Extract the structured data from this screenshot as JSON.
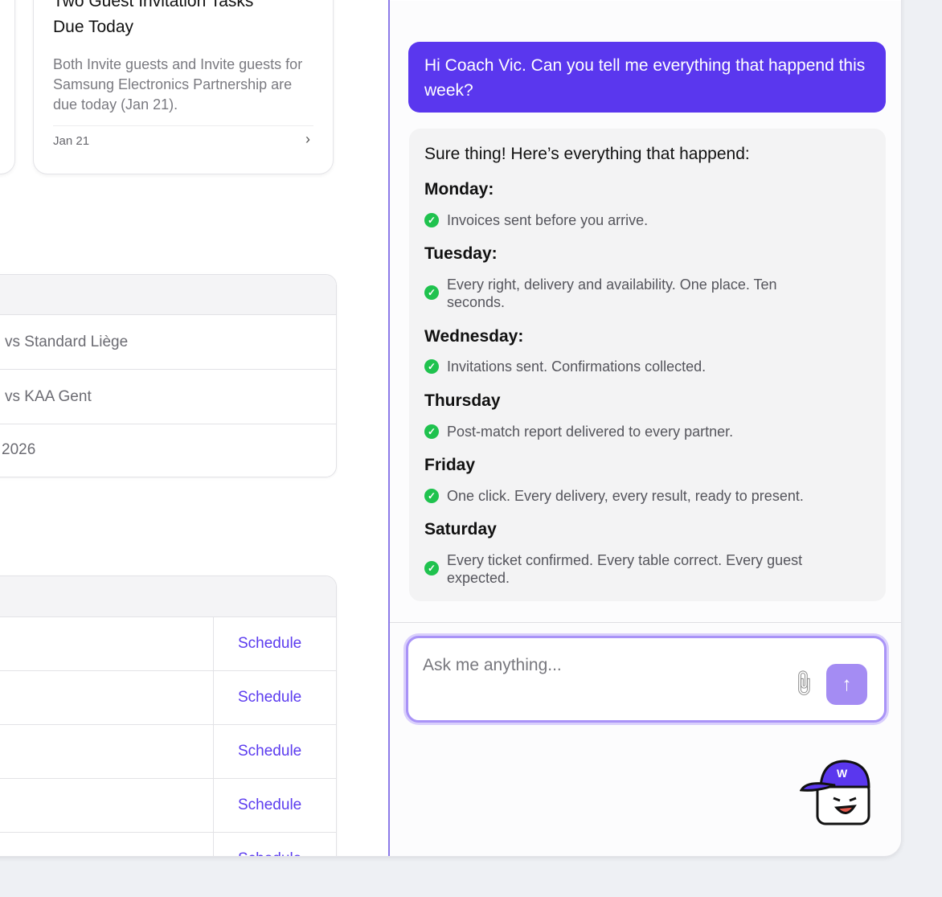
{
  "task_card": {
    "title_line1": "Two Guest Invitation Tasks",
    "title_line2": "Due Today",
    "description": "Both Invite guests and Invite guests for Samsung Electronics Partnership are due today (Jan 21).",
    "date": "Jan 21",
    "chevron": "chevron-right-icon"
  },
  "matches_table": {
    "rows": [
      "vs Standard Liège",
      "vs KAA Gent",
      "2026"
    ]
  },
  "schedule_table": {
    "rows": [
      {
        "action": "Schedule"
      },
      {
        "action": "Schedule"
      },
      {
        "action": "Schedule"
      },
      {
        "action": "Schedule"
      },
      {
        "action": "Schedule"
      }
    ]
  },
  "chat": {
    "user_message": "Hi Coach Vic. Can you tell me everything that happend this week?",
    "assistant_intro": "Sure thing! Here’s everything that happend:",
    "days": [
      {
        "day": "Monday:",
        "item": "Invoices sent before you arrive."
      },
      {
        "day": "Tuesday:",
        "item": "Every right, delivery and availability. One place. Ten seconds."
      },
      {
        "day": "Wednesday:",
        "item": "Invitations sent. Confirmations collected."
      },
      {
        "day": "Thursday",
        "item": "Post-match report delivered to every partner."
      },
      {
        "day": "Friday",
        "item": "One click. Every delivery, every result, ready to present."
      },
      {
        "day": "Saturday",
        "item": "Every ticket confirmed. Every table correct. Every guest expected."
      }
    ],
    "input_placeholder": "Ask me anything...",
    "mascot_logo": "W"
  },
  "colors": {
    "accent": "#5a37ee",
    "check": "#1fc24e",
    "send": "#a48cf3"
  }
}
